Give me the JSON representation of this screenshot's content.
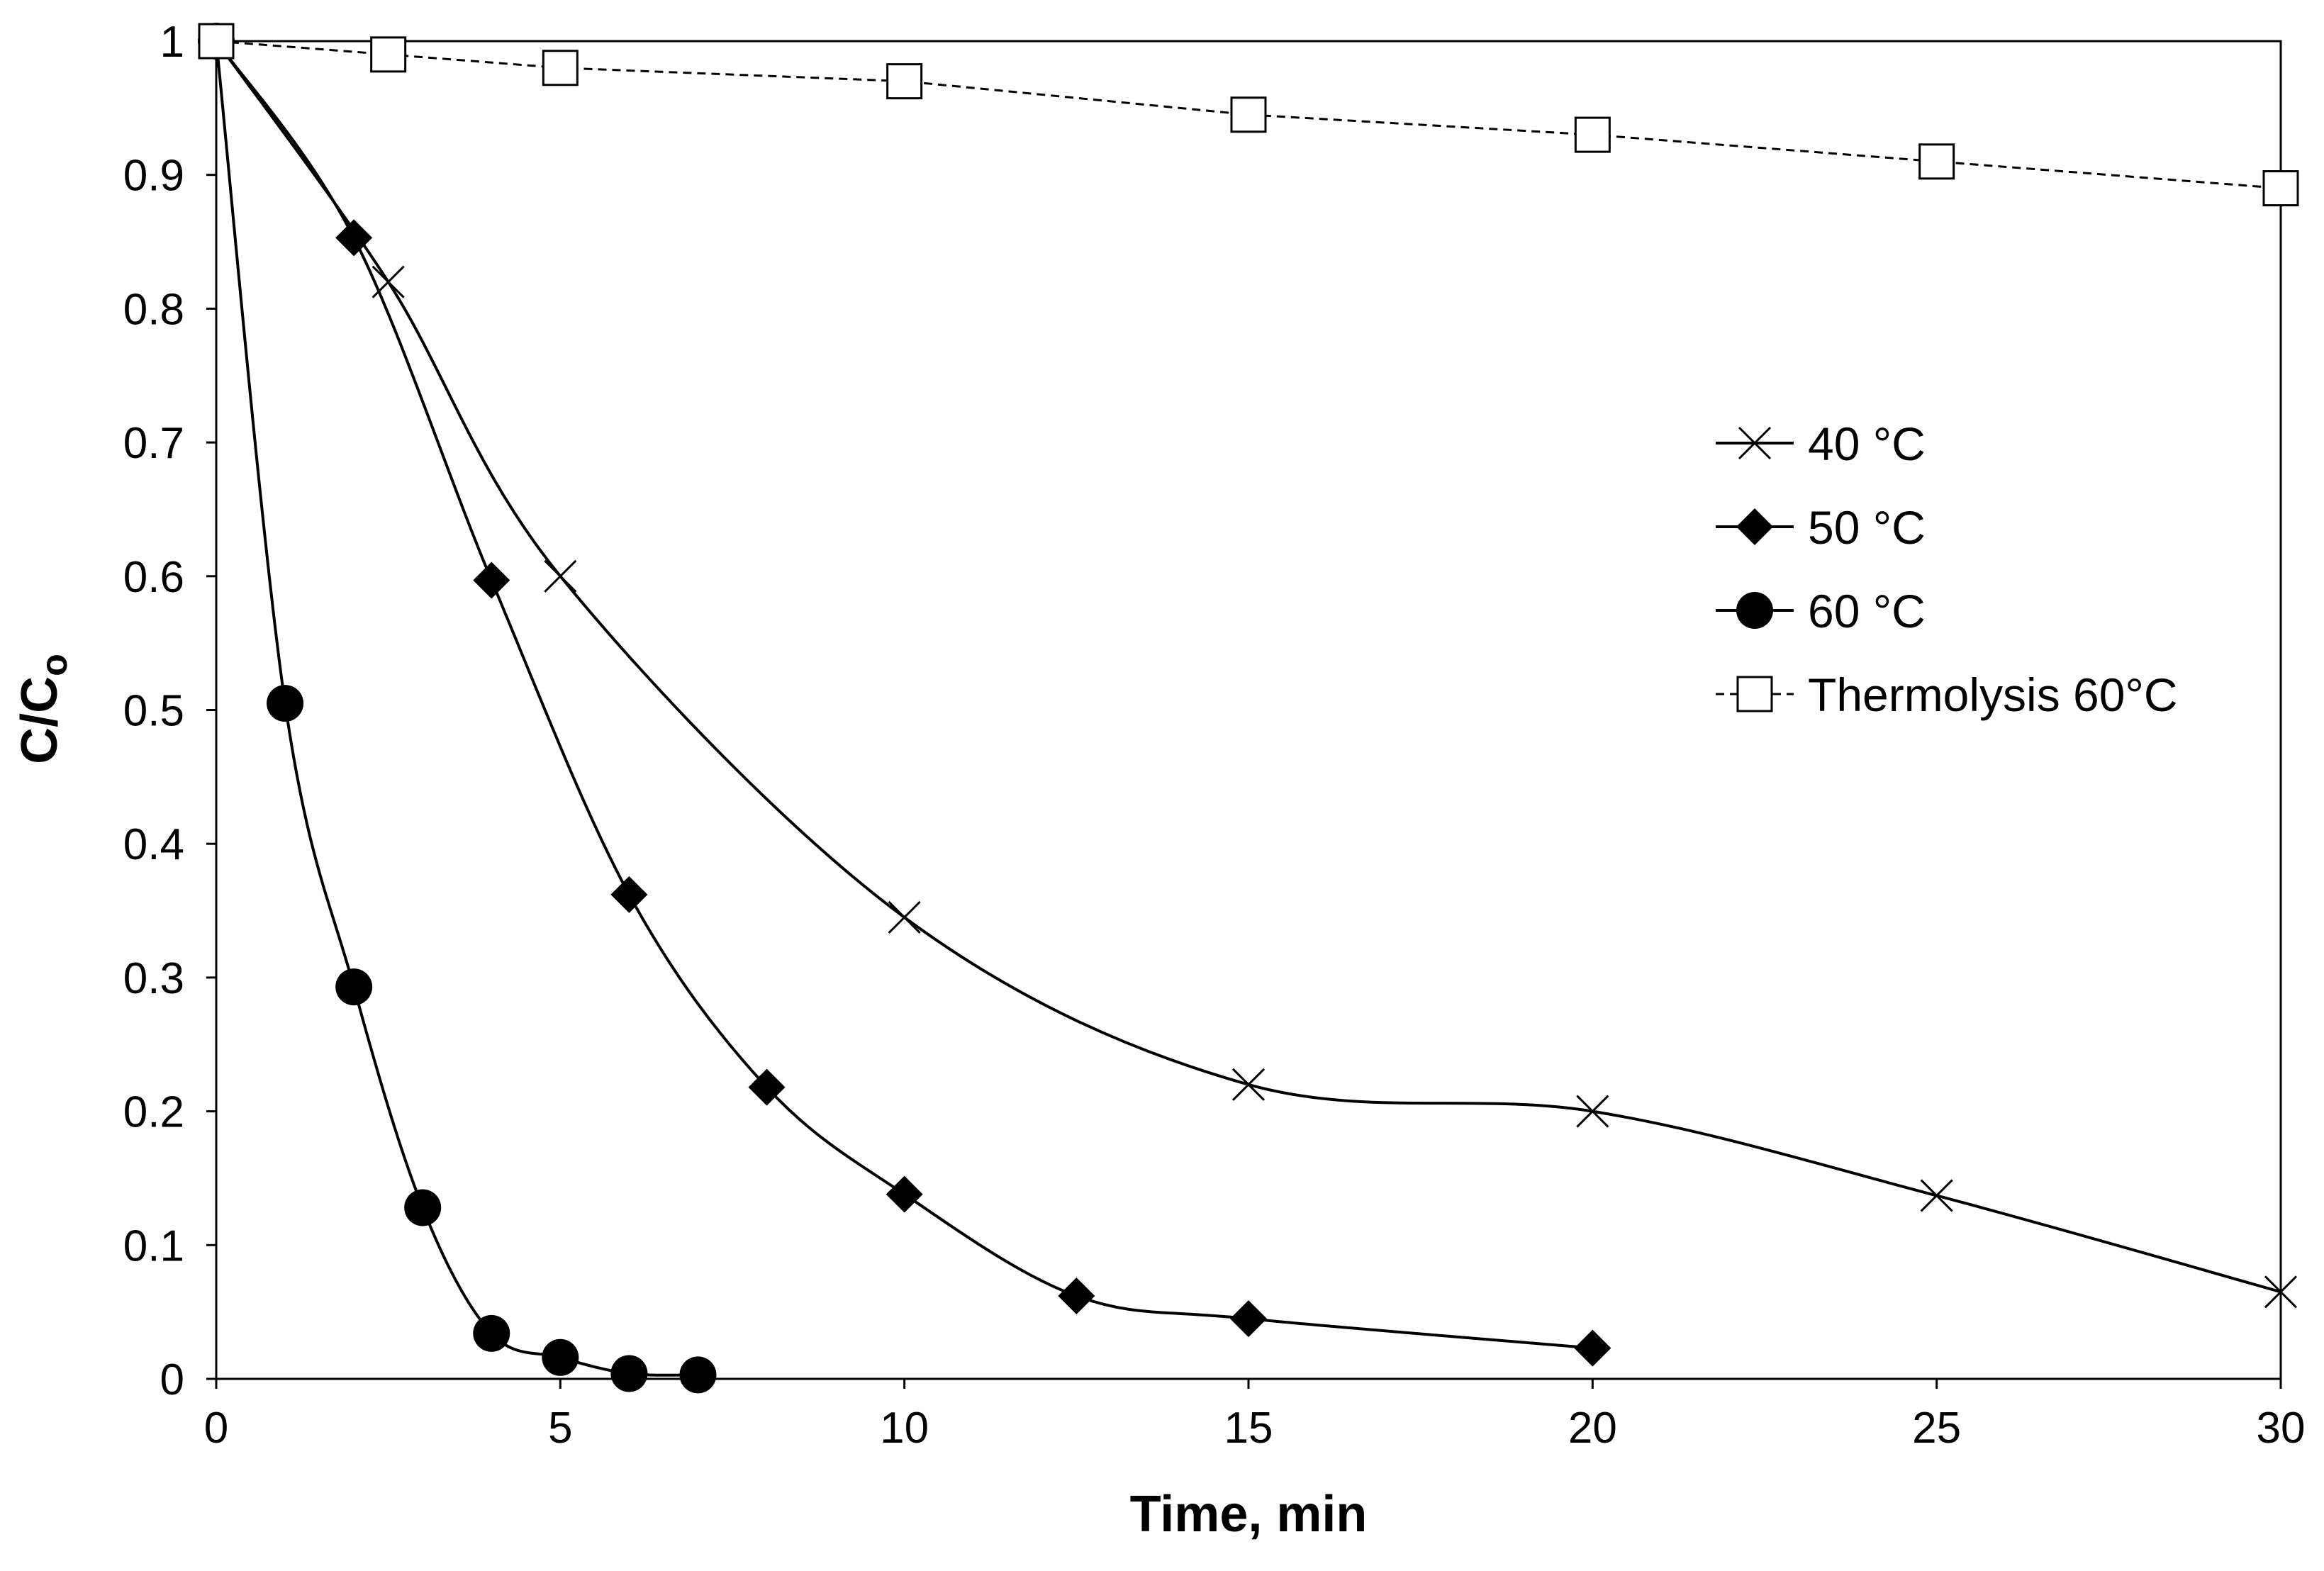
{
  "chart_data": {
    "type": "line",
    "title": "",
    "xlabel": "Time, min",
    "ylabel_main": "C/C",
    "ylabel_sub": "o",
    "xlim": [
      0,
      30
    ],
    "ylim": [
      0,
      1
    ],
    "xticks": [
      "0",
      "5",
      "10",
      "15",
      "20",
      "25",
      "30"
    ],
    "yticks": [
      "0",
      "0.1",
      "0.2",
      "0.3",
      "0.4",
      "0.5",
      "0.6",
      "0.7",
      "0.8",
      "0.9",
      "1"
    ],
    "grid": false,
    "legend_position": "right",
    "series": [
      {
        "name": "40 °C",
        "marker": "x",
        "line": "solid",
        "x": [
          0,
          2.5,
          5,
          10,
          15,
          20,
          25,
          30
        ],
        "y": [
          1.0,
          0.82,
          0.6,
          0.345,
          0.22,
          0.2,
          0.137,
          0.065
        ]
      },
      {
        "name": "50 °C",
        "marker": "diamond",
        "line": "solid",
        "x": [
          0,
          2,
          4,
          6,
          8,
          10,
          12.5,
          15,
          20
        ],
        "y": [
          1.0,
          0.853,
          0.597,
          0.362,
          0.218,
          0.138,
          0.062,
          0.045,
          0.023
        ]
      },
      {
        "name": "60 °C",
        "marker": "circle",
        "line": "solid",
        "x": [
          0,
          1,
          2,
          3,
          4,
          5,
          6,
          7
        ],
        "y": [
          1.0,
          0.505,
          0.293,
          0.128,
          0.034,
          0.016,
          0.004,
          0.003
        ]
      },
      {
        "name": "Thermolysis 60°C",
        "marker": "square-open",
        "line": "dashed",
        "x": [
          0,
          2.5,
          5,
          10,
          15,
          20,
          25,
          30
        ],
        "y": [
          1.0,
          0.99,
          0.98,
          0.97,
          0.945,
          0.93,
          0.91,
          0.89
        ]
      }
    ]
  },
  "colors": {
    "line": "#000000",
    "background": "#ffffff"
  }
}
